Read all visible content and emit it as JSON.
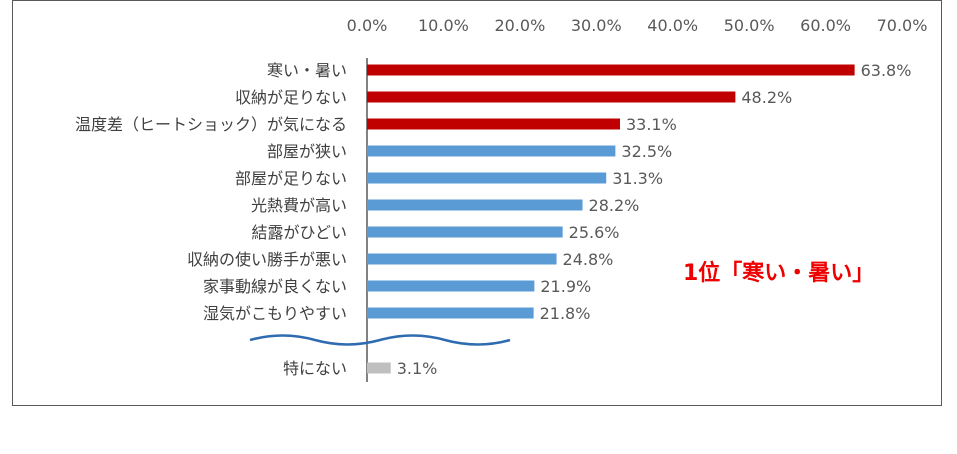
{
  "chart_data": {
    "type": "bar",
    "orientation": "horizontal",
    "xlim": [
      0,
      70
    ],
    "ticks": [
      "0.0%",
      "10.0%",
      "20.0%",
      "30.0%",
      "40.0%",
      "50.0%",
      "60.0%",
      "70.0%"
    ],
    "tick_values": [
      0,
      10,
      20,
      30,
      40,
      50,
      60,
      70
    ],
    "grid": false,
    "axis_break_before_last": true,
    "categories": [
      "寒い・暑い",
      "収納が足りない",
      "温度差（ヒートショック）が気になる",
      "部屋が狭い",
      "部屋が足りない",
      "光熱費が高い",
      "結露がひどい",
      "収納の使い勝手が悪い",
      "家事動線が良くない",
      "湿気がこもりやすい",
      "特にない"
    ],
    "values": [
      63.8,
      48.2,
      33.1,
      32.5,
      31.3,
      28.2,
      25.6,
      24.8,
      21.9,
      21.8,
      3.1
    ],
    "value_labels": [
      "63.8%",
      "48.2%",
      "33.1%",
      "32.5%",
      "31.3%",
      "28.2%",
      "25.6%",
      "24.8%",
      "21.9%",
      "21.8%",
      "3.1%"
    ],
    "bar_colors": [
      "#c00000",
      "#c00000",
      "#c00000",
      "#5b9bd5",
      "#5b9bd5",
      "#5b9bd5",
      "#5b9bd5",
      "#5b9bd5",
      "#5b9bd5",
      "#5b9bd5",
      "#bfbfbf"
    ],
    "annotation": "1位「寒い・暑い」",
    "annotation_color": "#ee0000"
  }
}
